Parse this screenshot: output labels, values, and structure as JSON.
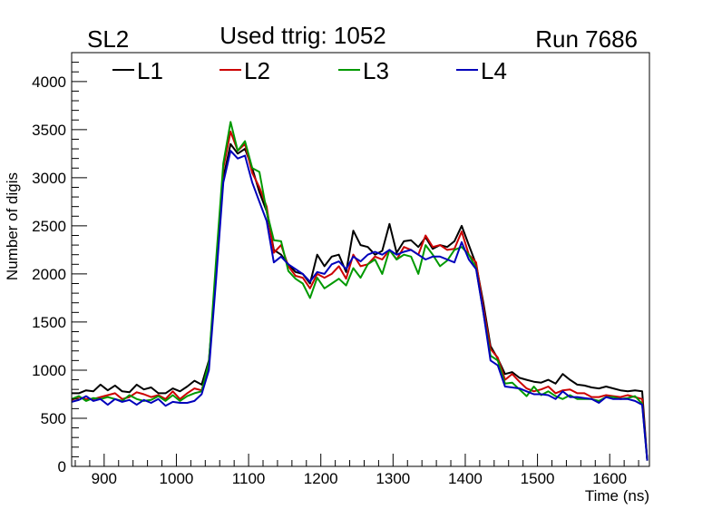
{
  "chart_data": {
    "type": "line",
    "title_left": "SL2",
    "title": "Used ttrig: 1052",
    "title_right": "Run 7686",
    "xlabel": "Time (ns)",
    "ylabel": "Number of digis",
    "xlim": [
      855,
      1655
    ],
    "ylim": [
      0,
      4300
    ],
    "xticks": [
      900,
      1000,
      1100,
      1200,
      1300,
      1400,
      1500,
      1600
    ],
    "yticks": [
      0,
      500,
      1000,
      1500,
      2000,
      2500,
      3000,
      3500,
      4000
    ],
    "legend_position": "top",
    "x": [
      855,
      865,
      875,
      885,
      895,
      905,
      915,
      925,
      935,
      945,
      955,
      965,
      975,
      985,
      995,
      1005,
      1015,
      1025,
      1035,
      1045,
      1055,
      1065,
      1075,
      1085,
      1095,
      1105,
      1115,
      1125,
      1135,
      1145,
      1155,
      1165,
      1175,
      1185,
      1195,
      1205,
      1215,
      1225,
      1235,
      1245,
      1255,
      1265,
      1275,
      1285,
      1295,
      1305,
      1315,
      1325,
      1335,
      1345,
      1355,
      1365,
      1375,
      1385,
      1395,
      1405,
      1415,
      1425,
      1435,
      1445,
      1455,
      1465,
      1475,
      1485,
      1495,
      1505,
      1515,
      1525,
      1535,
      1545,
      1555,
      1565,
      1575,
      1585,
      1595,
      1605,
      1615,
      1625,
      1635,
      1645,
      1652
    ],
    "series": [
      {
        "name": "L1",
        "color": "#000000",
        "values": [
          760,
          760,
          790,
          780,
          850,
          790,
          840,
          780,
          770,
          850,
          800,
          820,
          760,
          760,
          810,
          780,
          830,
          890,
          850,
          1100,
          2000,
          3000,
          3350,
          3250,
          3300,
          3100,
          2850,
          2650,
          2250,
          2200,
          2100,
          2020,
          2000,
          1900,
          2200,
          2080,
          2180,
          2200,
          2020,
          2450,
          2300,
          2280,
          2200,
          2240,
          2520,
          2220,
          2340,
          2350,
          2280,
          2380,
          2260,
          2300,
          2280,
          2340,
          2500,
          2300,
          2100,
          1700,
          1250,
          1120,
          960,
          980,
          920,
          900,
          880,
          870,
          900,
          860,
          960,
          900,
          850,
          840,
          820,
          810,
          830,
          810,
          790,
          780,
          790,
          780,
          60
        ]
      },
      {
        "name": "L2",
        "color": "#cc0000",
        "values": [
          690,
          720,
          700,
          700,
          720,
          740,
          760,
          700,
          720,
          770,
          750,
          720,
          740,
          700,
          780,
          700,
          760,
          810,
          790,
          1050,
          2050,
          3100,
          3480,
          3280,
          3350,
          3050,
          2900,
          2700,
          2220,
          2300,
          2080,
          1980,
          1960,
          1850,
          2000,
          1960,
          2000,
          2080,
          1950,
          2200,
          2080,
          2100,
          2180,
          2150,
          2250,
          2150,
          2280,
          2250,
          2200,
          2400,
          2280,
          2300,
          2250,
          2260,
          2440,
          2200,
          2120,
          1650,
          1220,
          1130,
          900,
          960,
          880,
          810,
          780,
          800,
          830,
          760,
          790,
          800,
          760,
          760,
          720,
          720,
          740,
          730,
          720,
          740,
          720,
          700,
          60
        ]
      },
      {
        "name": "L3",
        "color": "#009900",
        "values": [
          700,
          730,
          680,
          710,
          700,
          720,
          700,
          680,
          740,
          700,
          680,
          690,
          730,
          680,
          740,
          680,
          730,
          760,
          780,
          1080,
          2150,
          3150,
          3580,
          3280,
          3380,
          3100,
          3060,
          2650,
          2350,
          2340,
          2030,
          1950,
          1900,
          1750,
          1960,
          1850,
          1900,
          1950,
          1880,
          2060,
          1960,
          2100,
          2150,
          2000,
          2250,
          2150,
          2200,
          2180,
          2000,
          2300,
          2200,
          2080,
          2140,
          2250,
          2280,
          2200,
          2060,
          1600,
          1150,
          1100,
          860,
          870,
          800,
          730,
          830,
          740,
          780,
          730,
          700,
          740,
          700,
          700,
          700,
          680,
          720,
          720,
          700,
          710,
          730,
          650,
          60
        ]
      },
      {
        "name": "L4",
        "color": "#0000bb",
        "values": [
          670,
          690,
          730,
          680,
          700,
          640,
          700,
          670,
          690,
          640,
          690,
          660,
          700,
          630,
          670,
          660,
          660,
          680,
          750,
          1000,
          1950,
          2950,
          3280,
          3200,
          3230,
          2950,
          2750,
          2550,
          2120,
          2180,
          2100,
          2050,
          2000,
          1920,
          2020,
          2000,
          2100,
          2130,
          2050,
          2180,
          2130,
          2200,
          2230,
          2200,
          2250,
          2200,
          2230,
          2250,
          2200,
          2150,
          2180,
          2180,
          2150,
          2120,
          2330,
          2150,
          2050,
          1600,
          1100,
          1050,
          830,
          820,
          810,
          780,
          750,
          750,
          740,
          700,
          780,
          720,
          720,
          710,
          700,
          660,
          720,
          700,
          700,
          700,
          680,
          640,
          60
        ]
      }
    ]
  }
}
